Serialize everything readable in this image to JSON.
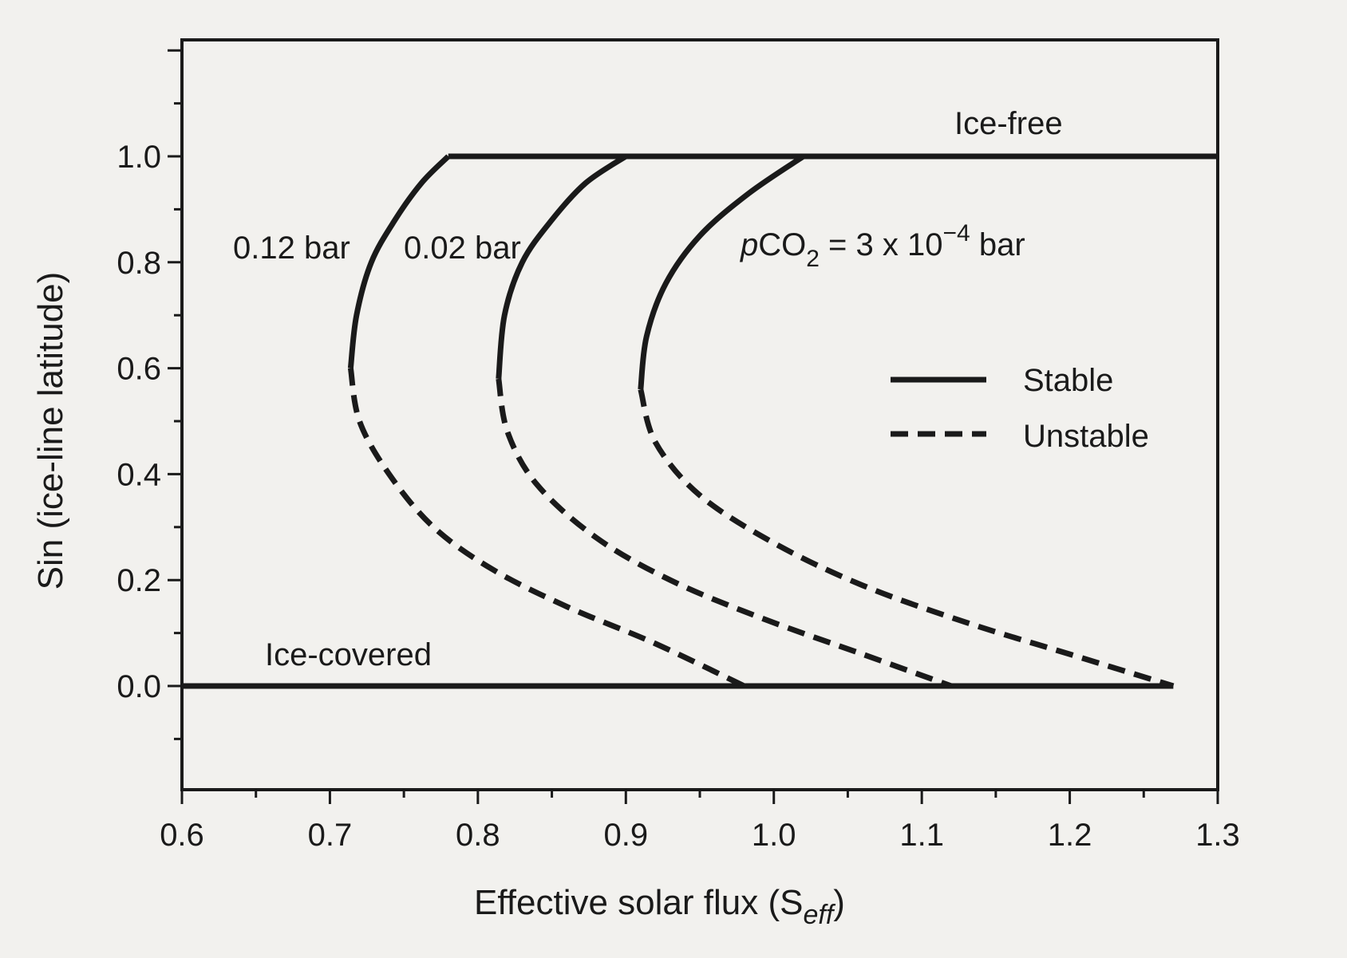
{
  "chart_data": {
    "type": "line",
    "title": "",
    "xlabel": "Effective solar flux (S",
    "xlabel_subscript": "eff",
    "xlabel_suffix": ")",
    "ylabel": "Sin (ice-line latitude)",
    "xlim": [
      0.6,
      1.3
    ],
    "ylim": [
      -0.2,
      1.2
    ],
    "x_ticks": [
      "0.6",
      "0.7",
      "0.8",
      "0.9",
      "1.0",
      "1.1",
      "1.2",
      "1.3"
    ],
    "y_ticks": [
      "0.0",
      "0.2",
      "0.4",
      "0.6",
      "0.8",
      "1.0"
    ],
    "grid": false,
    "legend_position": "right",
    "legend": [
      {
        "label": "Stable",
        "style": "solid"
      },
      {
        "label": "Unstable",
        "style": "dashed"
      }
    ],
    "annotations": {
      "ice_free": "Ice-free",
      "ice_covered": "Ice-covered",
      "label_012": "0.12 bar",
      "label_002": "0.02 bar",
      "label_pco2_p": "p",
      "label_pco2_co": "CO",
      "label_pco2_sub": "2",
      "label_pco2_eq": " = 3 x 10",
      "label_pco2_exp": "−4",
      "label_pco2_bar": " bar"
    },
    "series": [
      {
        "name": "Ice-free",
        "style": "solid",
        "x": [
          0.78,
          1.3
        ],
        "y": [
          1.0,
          1.0
        ]
      },
      {
        "name": "Ice-covered",
        "style": "solid",
        "x": [
          0.6,
          1.27
        ],
        "y": [
          0.0,
          0.0
        ]
      },
      {
        "name": "0.12 bar",
        "stable": {
          "x": [
            0.714,
            0.718,
            0.728,
            0.744,
            0.762,
            0.78
          ],
          "y": [
            0.6,
            0.7,
            0.8,
            0.88,
            0.95,
            1.0
          ]
        },
        "unstable": {
          "x": [
            0.714,
            0.72,
            0.74,
            0.77,
            0.81,
            0.86,
            0.92,
            0.98
          ],
          "y": [
            0.6,
            0.5,
            0.4,
            0.3,
            0.22,
            0.15,
            0.08,
            0.0
          ]
        }
      },
      {
        "name": "0.02 bar",
        "stable": {
          "x": [
            0.814,
            0.818,
            0.83,
            0.85,
            0.873,
            0.9
          ],
          "y": [
            0.58,
            0.7,
            0.8,
            0.88,
            0.95,
            1.0
          ]
        },
        "unstable": {
          "x": [
            0.814,
            0.82,
            0.84,
            0.88,
            0.93,
            0.99,
            1.06,
            1.12
          ],
          "y": [
            0.58,
            0.48,
            0.38,
            0.28,
            0.2,
            0.13,
            0.06,
            0.0
          ]
        }
      },
      {
        "name": "pCO2 = 3 x 10^-4 bar",
        "stable": {
          "x": [
            0.91,
            0.914,
            0.927,
            0.95,
            0.983,
            1.02
          ],
          "y": [
            0.56,
            0.66,
            0.76,
            0.85,
            0.93,
            1.0
          ]
        },
        "unstable": {
          "x": [
            0.91,
            0.92,
            0.95,
            1.0,
            1.06,
            1.13,
            1.2,
            1.27
          ],
          "y": [
            0.56,
            0.46,
            0.36,
            0.27,
            0.19,
            0.12,
            0.06,
            0.0
          ]
        }
      }
    ]
  }
}
